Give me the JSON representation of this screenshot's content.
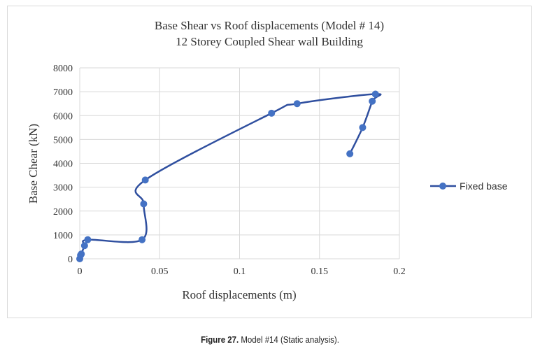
{
  "chart_data": {
    "type": "line",
    "title": "Base Shear vs Roof displacements (Model # 14)",
    "subtitle": "12 Storey Coupled Shear wall Building",
    "xlabel": "Roof displacements (m)",
    "ylabel": "Base Chear (kN)",
    "xlim": [
      0,
      0.2
    ],
    "ylim": [
      0,
      8000
    ],
    "xticks": [
      "0",
      "0.05",
      "0.1",
      "0.15",
      "0.2"
    ],
    "yticks": [
      "0",
      "1000",
      "2000",
      "3000",
      "4000",
      "5000",
      "6000",
      "7000",
      "8000"
    ],
    "grid": true,
    "legend_position": "right",
    "series": [
      {
        "name": "Fixed base",
        "color": "#4472c4",
        "line_color": "#2f4f9f",
        "points": [
          [
            0,
            0
          ],
          [
            0.0005,
            150
          ],
          [
            0.001,
            200
          ],
          [
            0.003,
            550
          ],
          [
            0.005,
            800
          ],
          [
            0.039,
            800
          ],
          [
            0.04,
            2300
          ],
          [
            0.041,
            3300
          ],
          [
            0.12,
            6100
          ],
          [
            0.136,
            6500
          ],
          [
            0.185,
            6900
          ],
          [
            0.183,
            6600
          ],
          [
            0.177,
            5500
          ],
          [
            0.169,
            4400
          ]
        ]
      }
    ]
  },
  "caption": {
    "bold": "Figure 27.",
    "text": " Model #14 (Static analysis)."
  }
}
